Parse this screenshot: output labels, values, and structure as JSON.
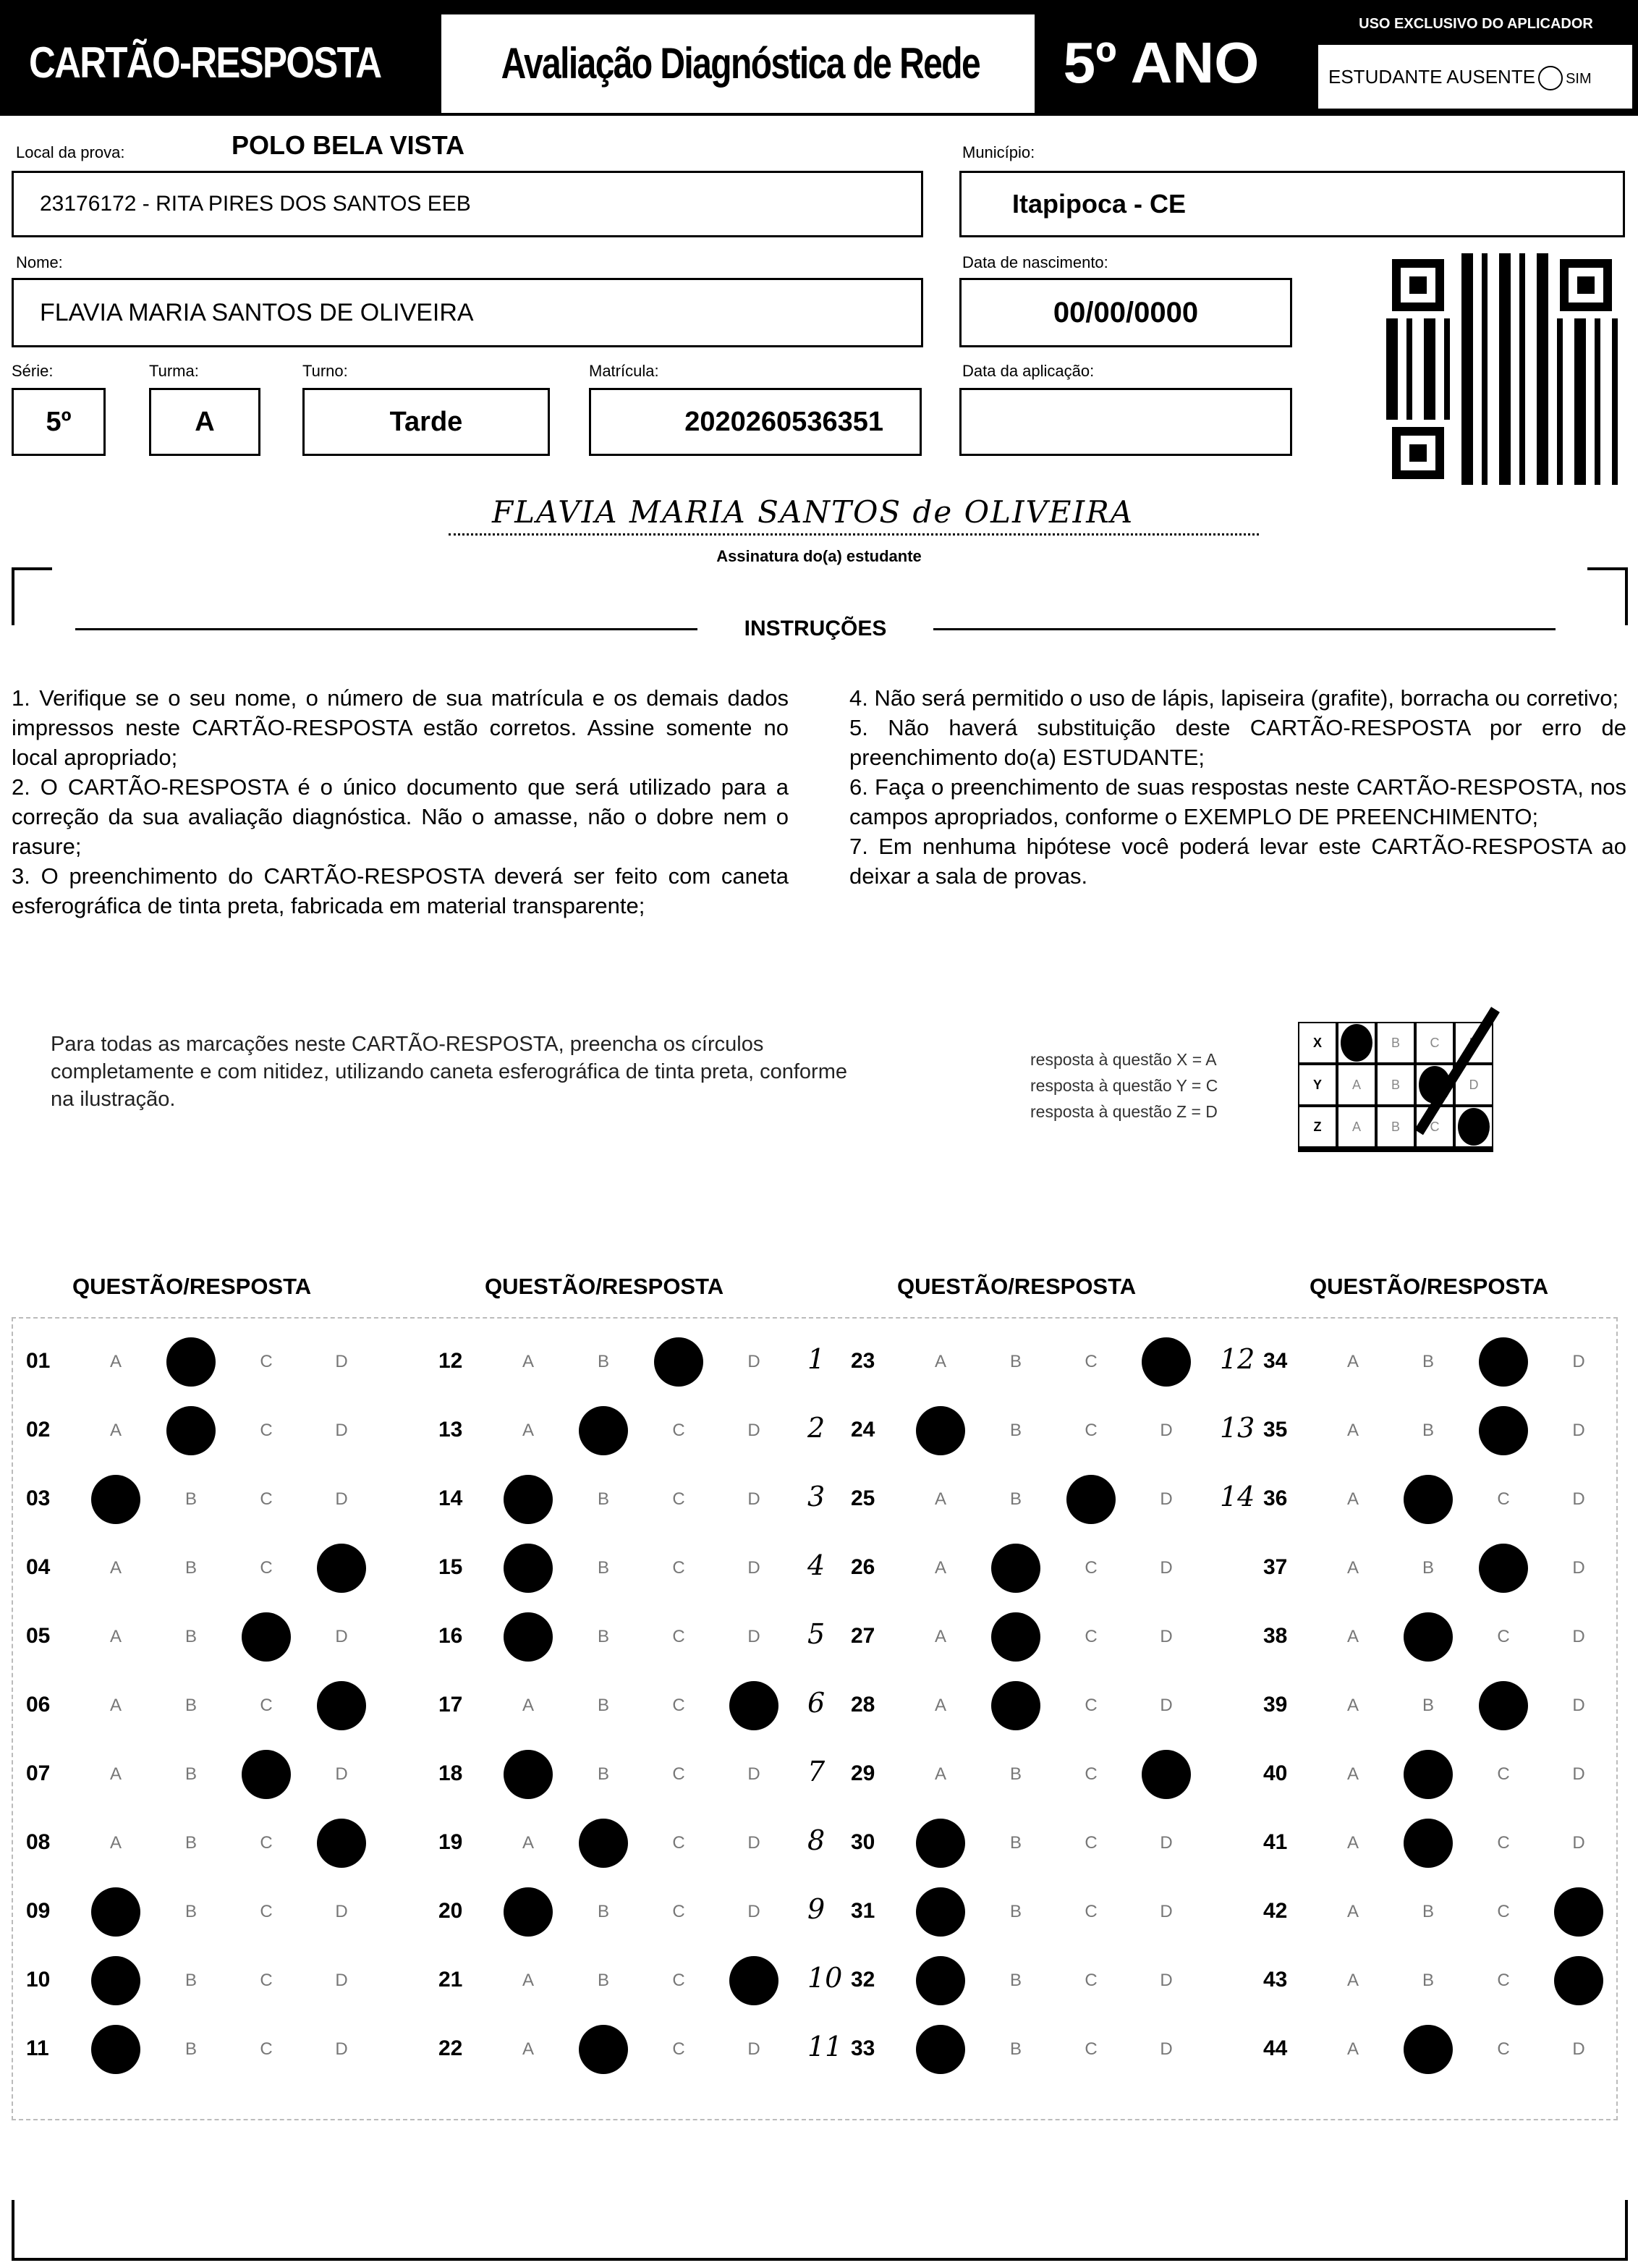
{
  "header": {
    "brand": "CARTÃO-RESPOSTA",
    "title": "Avaliação Diagnóstica de Rede",
    "grade": "5º ANO",
    "applicator_label": "USO EXCLUSIVO DO APLICADOR",
    "absent_label": "ESTUDANTE AUSENTE",
    "absent_option": "SIM"
  },
  "student": {
    "local_label": "Local da prova:",
    "local_value": "POLO BELA VISTA",
    "school": "23176172 - RITA PIRES DOS SANTOS EEB",
    "municipio_label": "Município:",
    "municipio": "Itapipoca - CE",
    "nome_label": "Nome:",
    "nome": "FLAVIA MARIA SANTOS DE OLIVEIRA",
    "nasc_label": "Data de nascimento:",
    "nasc": "00/00/0000",
    "serie_label": "Série:",
    "serie": "5º",
    "turma_label": "Turma:",
    "turma": "A",
    "turno_label": "Turno:",
    "turno": "Tarde",
    "matricula_label": "Matrícula:",
    "matricula": "2020260536351",
    "aplicacao_label": "Data da aplicação:",
    "aplicacao": ""
  },
  "signature": {
    "text": "FLAVIA MARIA SANTOS de OLIVEIRA",
    "caption": "Assinatura do(a) estudante"
  },
  "instructions": {
    "title": "INSTRUÇÕES",
    "left": [
      "1. Verifique se o seu nome, o número de sua matrícula e os demais dados impressos neste CARTÃO-RESPOSTA estão corretos. Assine somente no local apropriado;",
      "2. O CARTÃO-RESPOSTA é o único documento que será utilizado para a correção da sua avaliação diagnóstica. Não o amasse, não o dobre nem o rasure;",
      "3. O preenchimento do CARTÃO-RESPOSTA deverá ser feito com caneta esferográfica de tinta preta, fabricada em material transparente;"
    ],
    "right": [
      "4. Não será permitido o uso de lápis, lapiseira (grafite), borracha ou corretivo;",
      "5. Não haverá substituição deste CARTÃO-RESPOSTA por erro de preenchimento do(a) ESTUDANTE;",
      "6. Faça o preenchimento de suas respostas neste CARTÃO-RESPOSTA, nos campos apropriados, conforme o EXEMPLO DE PREENCHIMENTO;",
      "7. Em nenhuma hipótese você poderá levar este CARTÃO-RESPOSTA ao deixar a sala de provas."
    ]
  },
  "fill_note": "Para todas as marcações neste CARTÃO-RESPOSTA, preencha os círculos completamente e com nitidez, utilizando caneta esferográfica de tinta preta, conforme na ilustração.",
  "example": {
    "lines": [
      "resposta à questão X = A",
      "resposta à questão Y = C",
      "resposta à questão Z = D"
    ],
    "rows": [
      {
        "q": "X",
        "answer": "A"
      },
      {
        "q": "Y",
        "answer": "C"
      },
      {
        "q": "Z",
        "answer": "D"
      }
    ]
  },
  "answers": {
    "column_header": "QUESTÃO/RESPOSTA",
    "options": [
      "A",
      "B",
      "C",
      "D"
    ],
    "columns": [
      [
        {
          "q": "01",
          "a": "B"
        },
        {
          "q": "02",
          "a": "B"
        },
        {
          "q": "03",
          "a": "A"
        },
        {
          "q": "04",
          "a": "D"
        },
        {
          "q": "05",
          "a": "C"
        },
        {
          "q": "06",
          "a": "D"
        },
        {
          "q": "07",
          "a": "C"
        },
        {
          "q": "08",
          "a": "D"
        },
        {
          "q": "09",
          "a": "A"
        },
        {
          "q": "10",
          "a": "A"
        },
        {
          "q": "11",
          "a": "A"
        }
      ],
      [
        {
          "q": "12",
          "a": "C"
        },
        {
          "q": "13",
          "a": "B"
        },
        {
          "q": "14",
          "a": "A"
        },
        {
          "q": "15",
          "a": "A"
        },
        {
          "q": "16",
          "a": "A"
        },
        {
          "q": "17",
          "a": "D"
        },
        {
          "q": "18",
          "a": "A"
        },
        {
          "q": "19",
          "a": "B"
        },
        {
          "q": "20",
          "a": "A"
        },
        {
          "q": "21",
          "a": "D"
        },
        {
          "q": "22",
          "a": "B"
        }
      ],
      [
        {
          "q": "23",
          "a": "D",
          "note": "1"
        },
        {
          "q": "24",
          "a": "A",
          "note": "2"
        },
        {
          "q": "25",
          "a": "C",
          "note": "3"
        },
        {
          "q": "26",
          "a": "B",
          "note": "4"
        },
        {
          "q": "27",
          "a": "B",
          "note": "5"
        },
        {
          "q": "28",
          "a": "B",
          "note": "6"
        },
        {
          "q": "29",
          "a": "D",
          "note": "7"
        },
        {
          "q": "30",
          "a": "A",
          "note": "8"
        },
        {
          "q": "31",
          "a": "A",
          "note": "9"
        },
        {
          "q": "32",
          "a": "A",
          "note": "10"
        },
        {
          "q": "33",
          "a": "A",
          "note": "11"
        }
      ],
      [
        {
          "q": "34",
          "a": "C",
          "note": "12"
        },
        {
          "q": "35",
          "a": "C",
          "note": "13"
        },
        {
          "q": "36",
          "a": "B",
          "note": "14"
        },
        {
          "q": "37",
          "a": "C"
        },
        {
          "q": "38",
          "a": "B"
        },
        {
          "q": "39",
          "a": "C"
        },
        {
          "q": "40",
          "a": "B"
        },
        {
          "q": "41",
          "a": "B"
        },
        {
          "q": "42",
          "a": "D"
        },
        {
          "q": "43",
          "a": "D"
        },
        {
          "q": "44",
          "a": "B"
        }
      ]
    ]
  }
}
